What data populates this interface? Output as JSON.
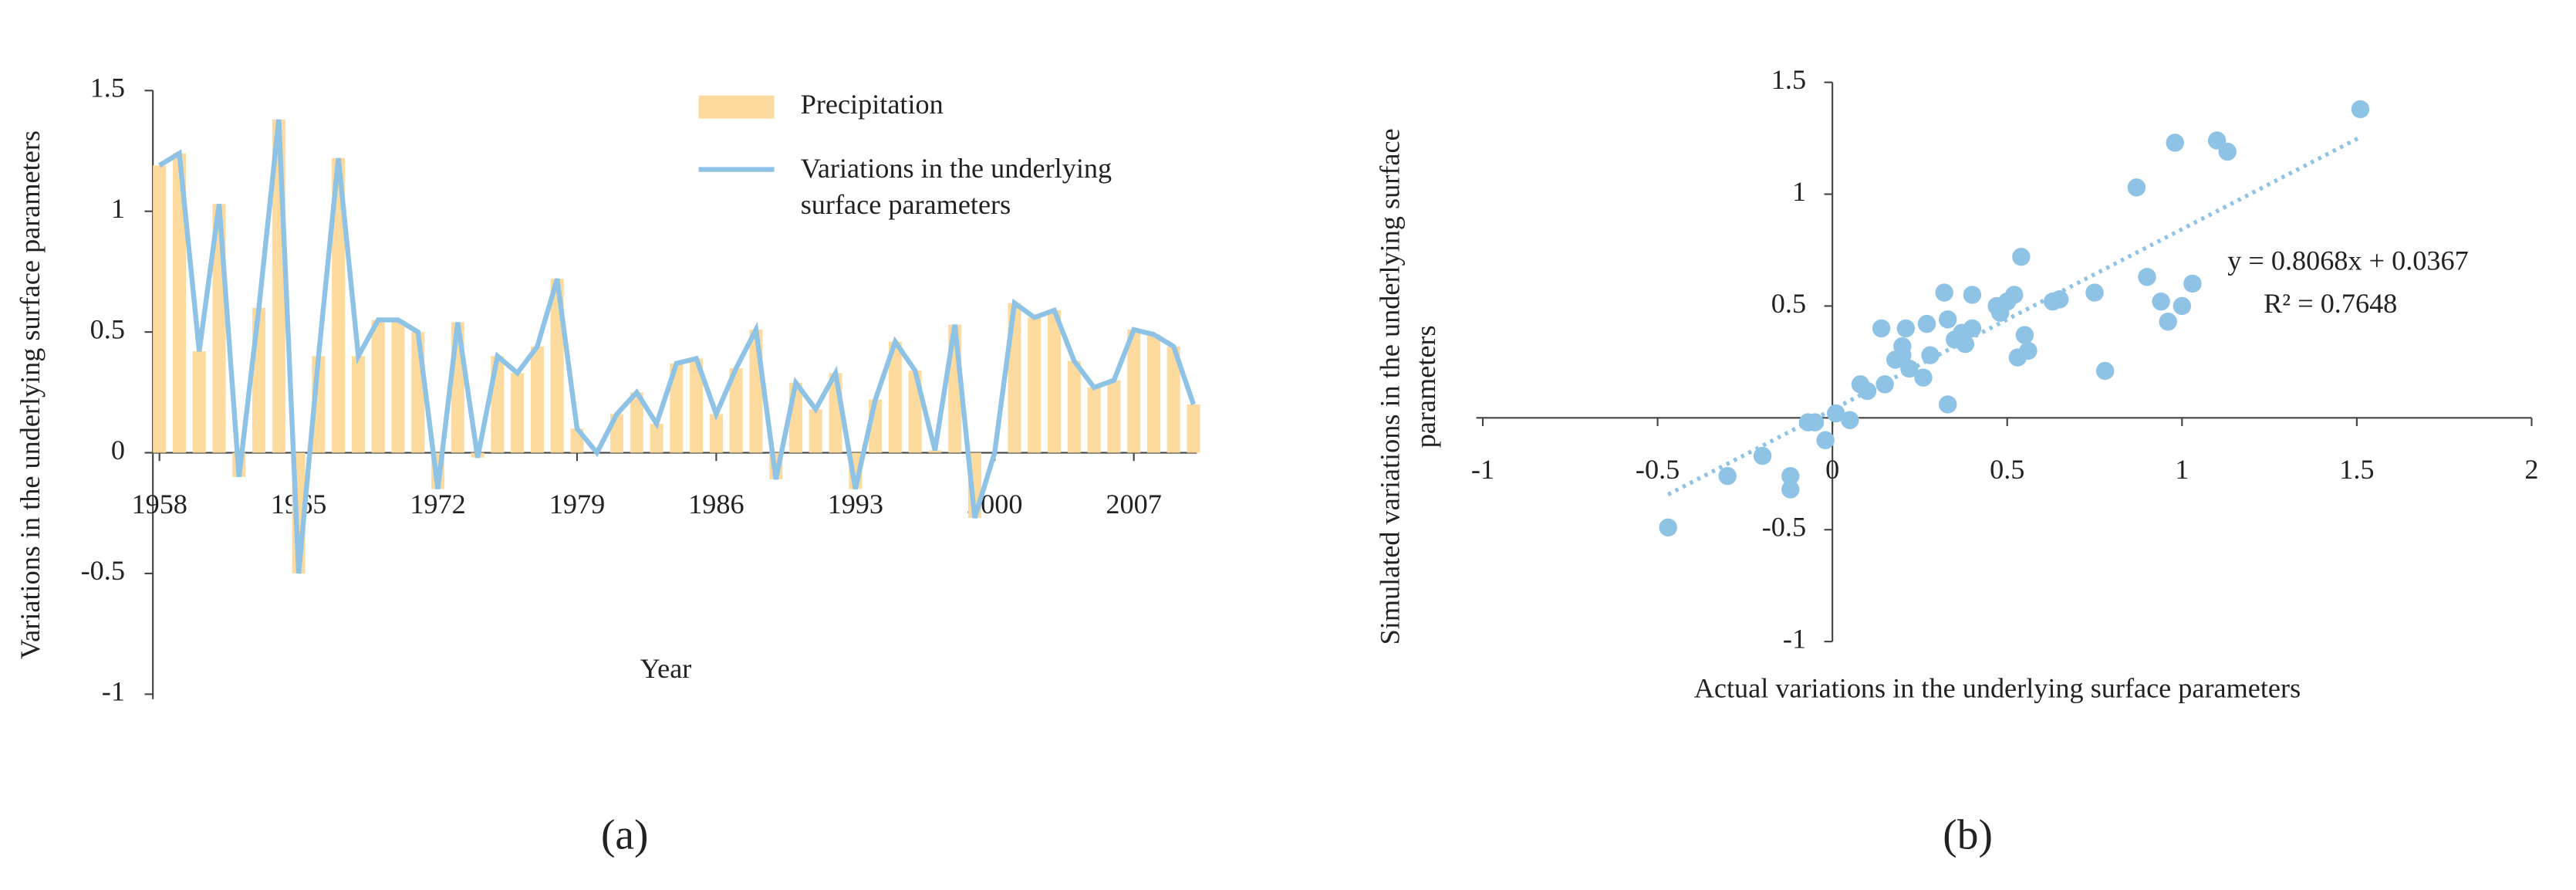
{
  "chart_data": [
    {
      "type": "bar",
      "panel_label": "(a)",
      "x_label": "Year",
      "y_label": "Variations in the underlying surface parameters",
      "x": [
        1958,
        1959,
        1960,
        1961,
        1962,
        1963,
        1964,
        1965,
        1966,
        1967,
        1968,
        1969,
        1970,
        1971,
        1972,
        1973,
        1974,
        1975,
        1976,
        1977,
        1978,
        1979,
        1980,
        1981,
        1982,
        1983,
        1984,
        1985,
        1986,
        1987,
        1988,
        1989,
        1990,
        1991,
        1992,
        1993,
        1994,
        1995,
        1996,
        1997,
        1998,
        1999,
        2000,
        2001,
        2002,
        2003,
        2004,
        2005,
        2006,
        2007,
        2008,
        2009,
        2010
      ],
      "xlim": [
        1958,
        2010
      ],
      "xticks": [
        1958,
        1965,
        1972,
        1979,
        1986,
        1993,
        2000,
        2007
      ],
      "ylim": [
        -1,
        1.5
      ],
      "yticks": [
        -1,
        -0.5,
        0,
        0.5,
        1,
        1.5
      ],
      "series": [
        {
          "name": "Precipitation",
          "type": "bar",
          "color": "#fddb9e",
          "values": [
            1.19,
            1.24,
            0.42,
            1.03,
            -0.1,
            0.6,
            1.38,
            -0.5,
            0.4,
            1.22,
            0.4,
            0.55,
            0.55,
            0.5,
            -0.15,
            0.54,
            -0.02,
            0.4,
            0.33,
            0.44,
            0.72,
            0.1,
            0.0,
            0.16,
            0.25,
            0.12,
            0.37,
            0.39,
            0.16,
            0.35,
            0.51,
            -0.11,
            0.29,
            0.18,
            0.33,
            -0.15,
            0.22,
            0.46,
            0.34,
            0.01,
            0.53,
            -0.27,
            0.0,
            0.62,
            0.56,
            0.59,
            0.38,
            0.27,
            0.3,
            0.51,
            0.49,
            0.44,
            0.2
          ]
        },
        {
          "name": "Variations in the underlying surface parameters",
          "type": "line",
          "color": "#8ec3e6",
          "values": [
            1.19,
            1.24,
            0.42,
            1.03,
            -0.1,
            0.6,
            1.38,
            -0.5,
            0.4,
            1.22,
            0.4,
            0.55,
            0.55,
            0.5,
            -0.15,
            0.54,
            -0.02,
            0.4,
            0.33,
            0.44,
            0.72,
            0.1,
            0.0,
            0.16,
            0.25,
            0.12,
            0.37,
            0.39,
            0.16,
            0.35,
            0.51,
            -0.11,
            0.29,
            0.18,
            0.33,
            -0.15,
            0.22,
            0.46,
            0.34,
            0.01,
            0.53,
            -0.27,
            0.0,
            0.62,
            0.56,
            0.59,
            0.38,
            0.27,
            0.3,
            0.51,
            0.49,
            0.44,
            0.2
          ]
        }
      ]
    },
    {
      "type": "scatter",
      "panel_label": "(b)",
      "x_label": "Actual variations in the underlying surface parameters",
      "y_label": "Simulated variations in the underlying surface parameters",
      "xlim": [
        -1,
        2
      ],
      "xticks": [
        -1,
        -0.5,
        0,
        0.5,
        1,
        1.5,
        2
      ],
      "ylim": [
        -1,
        1.5
      ],
      "yticks": [
        -1,
        -0.5,
        0.5,
        1,
        1.5
      ],
      "color": "#8ec3e6",
      "x": [
        -0.47,
        -0.3,
        -0.2,
        -0.12,
        -0.12,
        -0.07,
        -0.05,
        -0.02,
        0.01,
        0.05,
        0.08,
        0.1,
        0.14,
        0.15,
        0.18,
        0.2,
        0.2,
        0.21,
        0.22,
        0.26,
        0.27,
        0.28,
        0.32,
        0.33,
        0.33,
        0.35,
        0.37,
        0.38,
        0.4,
        0.4,
        0.47,
        0.48,
        0.5,
        0.52,
        0.53,
        0.54,
        0.55,
        0.56,
        0.63,
        0.65,
        0.75,
        0.78,
        0.87,
        0.9,
        0.94,
        0.96,
        0.98,
        1.0,
        1.03,
        1.1,
        1.13,
        1.51
      ],
      "values": [
        -0.49,
        -0.26,
        -0.17,
        -0.26,
        -0.32,
        -0.02,
        -0.02,
        -0.1,
        0.02,
        -0.01,
        0.15,
        0.12,
        0.4,
        0.15,
        0.26,
        0.32,
        0.28,
        0.4,
        0.22,
        0.18,
        0.42,
        0.28,
        0.56,
        0.44,
        0.06,
        0.35,
        0.38,
        0.33,
        0.4,
        0.55,
        0.5,
        0.47,
        0.52,
        0.55,
        0.27,
        0.72,
        0.37,
        0.3,
        0.52,
        0.53,
        0.56,
        0.21,
        1.03,
        0.63,
        0.52,
        0.43,
        1.23,
        0.5,
        0.6,
        1.24,
        1.19,
        1.38
      ],
      "trendline": {
        "slope": 0.8068,
        "intercept": 0.0367,
        "equation": "y = 0.8068x + 0.0367",
        "r2": "R² = 0.7648"
      }
    }
  ]
}
